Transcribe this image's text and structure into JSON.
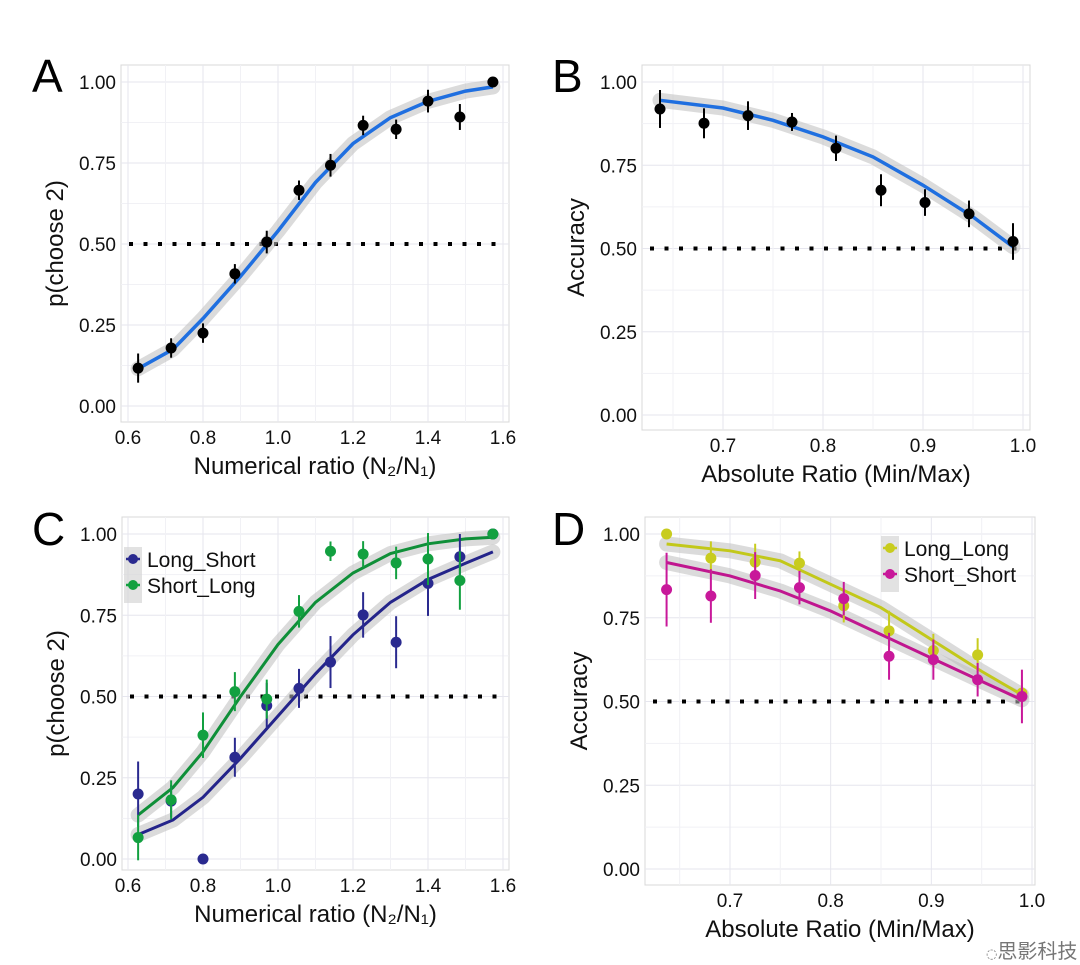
{
  "chart_data": [
    {
      "panel": "A",
      "type": "scatter",
      "xlabel": "Numerical ratio (N₂/N₁)",
      "ylabel": "p(choose 2)",
      "xlim": [
        0.6,
        1.6
      ],
      "ylim": [
        0,
        1
      ],
      "xticks": [
        "0.6",
        "0.8",
        "1.0",
        "1.2",
        "1.4",
        "1.6"
      ],
      "yticks": [
        "0.00",
        "0.25",
        "0.50",
        "0.75",
        "1.00"
      ],
      "reference_line": 0.5,
      "grid": true,
      "series": [
        {
          "color": "#000000",
          "fit_color": "#1f6fe0",
          "x": [
            0.627,
            0.715,
            0.8,
            0.885,
            0.97,
            1.056,
            1.14,
            1.227,
            1.315,
            1.4,
            1.485,
            1.573
          ],
          "y": [
            0.117,
            0.179,
            0.225,
            0.408,
            0.506,
            0.666,
            0.743,
            0.866,
            0.854,
            0.941,
            0.892,
            1.0
          ],
          "err": [
            0.045,
            0.03,
            0.03,
            0.03,
            0.035,
            0.03,
            0.035,
            0.03,
            0.03,
            0.035,
            0.04,
            0.0
          ],
          "fit": {
            "x": [
              0.627,
              0.72,
              0.8,
              0.9,
              1.0,
              1.1,
              1.2,
              1.3,
              1.4,
              1.5,
              1.573
            ],
            "y": [
              0.115,
              0.175,
              0.27,
              0.4,
              0.54,
              0.69,
              0.81,
              0.89,
              0.94,
              0.972,
              0.985
            ]
          }
        }
      ]
    },
    {
      "panel": "B",
      "type": "scatter",
      "xlabel": "Absolute Ratio (Min/Max)",
      "ylabel": "Accuracy",
      "xlim": [
        0.6,
        1.0
      ],
      "ylim": [
        0,
        1
      ],
      "xticks": [
        "0.7",
        "0.8",
        "0.9",
        "1.0"
      ],
      "yticks": [
        "0.00",
        "0.25",
        "0.50",
        "0.75",
        "1.00"
      ],
      "reference_line": 0.5,
      "grid": true,
      "series": [
        {
          "color": "#000000",
          "fit_color": "#1f6fe0",
          "x": [
            0.637,
            0.681,
            0.725,
            0.769,
            0.813,
            0.858,
            0.902,
            0.946,
            0.99
          ],
          "y": [
            0.919,
            0.876,
            0.899,
            0.88,
            0.801,
            0.675,
            0.638,
            0.604,
            0.521
          ],
          "err": [
            0.057,
            0.045,
            0.043,
            0.027,
            0.038,
            0.048,
            0.04,
            0.04,
            0.055
          ],
          "fit": {
            "x": [
              0.637,
              0.7,
              0.75,
              0.8,
              0.85,
              0.9,
              0.95,
              0.99
            ],
            "y": [
              0.945,
              0.922,
              0.885,
              0.835,
              0.775,
              0.69,
              0.595,
              0.505
            ]
          }
        }
      ]
    },
    {
      "panel": "C",
      "type": "scatter",
      "xlabel": "Numerical ratio (N₂/N₁)",
      "ylabel": "p(choose 2)",
      "xlim": [
        0.6,
        1.6
      ],
      "ylim": [
        0,
        1
      ],
      "xticks": [
        "0.6",
        "0.8",
        "1.0",
        "1.2",
        "1.4",
        "1.6"
      ],
      "yticks": [
        "0.00",
        "0.25",
        "0.50",
        "0.75",
        "1.00"
      ],
      "reference_line": 0.5,
      "grid": true,
      "legend": "top-left",
      "series": [
        {
          "name": "Long_Short",
          "color": "#2a2a8f",
          "fit_color": "#24248a",
          "x": [
            0.627,
            0.715,
            0.8,
            0.885,
            0.97,
            1.056,
            1.14,
            1.227,
            1.315,
            1.4,
            1.485,
            1.573
          ],
          "y": [
            0.2,
            0.178,
            0.0,
            0.313,
            0.472,
            0.525,
            0.606,
            0.751,
            0.667,
            0.848,
            0.93,
            1.0
          ],
          "err": [
            0.1,
            0.05,
            0.0,
            0.06,
            0.07,
            0.06,
            0.08,
            0.07,
            0.08,
            0.1,
            0.07,
            0.0
          ],
          "fit": {
            "x": [
              0.627,
              0.72,
              0.8,
              0.9,
              1.0,
              1.1,
              1.2,
              1.3,
              1.4,
              1.5,
              1.573
            ],
            "y": [
              0.075,
              0.12,
              0.19,
              0.31,
              0.44,
              0.57,
              0.69,
              0.79,
              0.86,
              0.91,
              0.945
            ]
          }
        },
        {
          "name": "Short_Long",
          "color": "#12a040",
          "fit_color": "#0f8f38",
          "x": [
            0.627,
            0.715,
            0.8,
            0.885,
            0.97,
            1.056,
            1.14,
            1.227,
            1.315,
            1.4,
            1.485,
            1.573
          ],
          "y": [
            0.066,
            0.182,
            0.381,
            0.515,
            0.492,
            0.762,
            0.947,
            0.938,
            0.911,
            0.923,
            0.857,
            1.0
          ],
          "err": [
            0.07,
            0.06,
            0.07,
            0.06,
            0.06,
            0.05,
            0.03,
            0.04,
            0.05,
            0.08,
            0.09,
            0.0
          ],
          "fit": {
            "x": [
              0.627,
              0.72,
              0.8,
              0.9,
              1.0,
              1.1,
              1.2,
              1.3,
              1.4,
              1.5,
              1.573
            ],
            "y": [
              0.135,
              0.22,
              0.33,
              0.5,
              0.66,
              0.79,
              0.88,
              0.94,
              0.97,
              0.985,
              0.99
            ]
          }
        }
      ]
    },
    {
      "panel": "D",
      "type": "scatter",
      "xlabel": "Absolute Ratio (Min/Max)",
      "ylabel": "Accuracy",
      "xlim": [
        0.6,
        1.0
      ],
      "ylim": [
        0,
        1
      ],
      "xticks": [
        "0.7",
        "0.8",
        "0.9",
        "1.0"
      ],
      "yticks": [
        "0.00",
        "0.25",
        "0.50",
        "0.75",
        "1.00"
      ],
      "reference_line": 0.5,
      "grid": true,
      "legend": "top-right",
      "series": [
        {
          "name": "Long_Long",
          "color": "#c8cc1e",
          "fit_color": "#c2c81a",
          "x": [
            0.637,
            0.681,
            0.725,
            0.769,
            0.813,
            0.858,
            0.902,
            0.946,
            0.99
          ],
          "y": [
            1.0,
            0.928,
            0.916,
            0.913,
            0.786,
            0.711,
            0.652,
            0.639,
            0.525
          ],
          "err": [
            0.0,
            0.05,
            0.055,
            0.035,
            0.05,
            0.06,
            0.05,
            0.05,
            0.04
          ],
          "fit": {
            "x": [
              0.637,
              0.7,
              0.75,
              0.8,
              0.85,
              0.9,
              0.95,
              0.99
            ],
            "y": [
              0.97,
              0.95,
              0.92,
              0.85,
              0.78,
              0.685,
              0.59,
              0.52
            ]
          }
        },
        {
          "name": "Short_Short",
          "color": "#c8189a",
          "fit_color": "#c0168f",
          "x": [
            0.637,
            0.681,
            0.725,
            0.769,
            0.813,
            0.858,
            0.902,
            0.946,
            0.99
          ],
          "y": [
            0.834,
            0.815,
            0.876,
            0.84,
            0.807,
            0.635,
            0.625,
            0.565,
            0.515
          ],
          "err": [
            0.11,
            0.08,
            0.07,
            0.05,
            0.05,
            0.07,
            0.06,
            0.05,
            0.08
          ],
          "fit": {
            "x": [
              0.637,
              0.7,
              0.75,
              0.8,
              0.85,
              0.9,
              0.95,
              0.99
            ],
            "y": [
              0.915,
              0.875,
              0.83,
              0.77,
              0.7,
              0.63,
              0.56,
              0.505
            ]
          }
        }
      ]
    }
  ],
  "panel_labels": [
    "A",
    "B",
    "C",
    "D"
  ],
  "watermark": "思影科技"
}
